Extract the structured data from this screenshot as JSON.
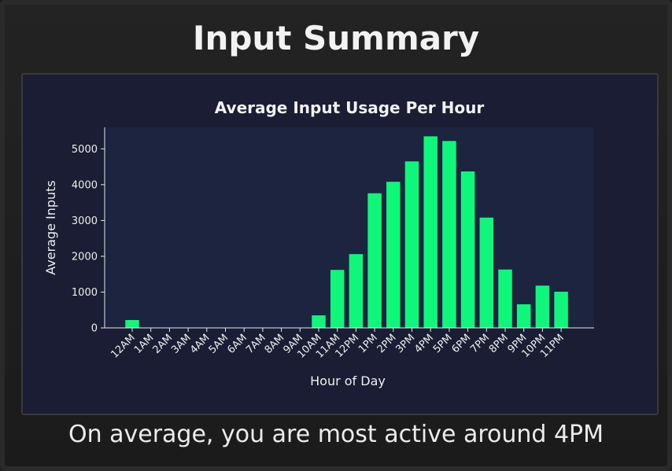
{
  "header": {
    "title": "Input Summary"
  },
  "summary": {
    "text": "On average, you are most active around 4PM"
  },
  "colors": {
    "bar": "#0ff77a",
    "plot_bg": "#1c2440",
    "frame_bg": "#1a1d33",
    "text": "#f0f0f0"
  },
  "chart_data": {
    "type": "bar",
    "title": "Average Input Usage Per Hour",
    "xlabel": "Hour of Day",
    "ylabel": "Average Inputs",
    "categories": [
      "12AM",
      "1AM",
      "2AM",
      "3AM",
      "4AM",
      "5AM",
      "6AM",
      "7AM",
      "8AM",
      "9AM",
      "10AM",
      "11AM",
      "12PM",
      "1PM",
      "2PM",
      "3PM",
      "4PM",
      "5PM",
      "6PM",
      "7PM",
      "8PM",
      "9PM",
      "10PM",
      "11PM"
    ],
    "values": [
      220,
      0,
      0,
      0,
      0,
      0,
      0,
      0,
      0,
      0,
      350,
      1620,
      2060,
      3760,
      4080,
      4650,
      5350,
      5220,
      4370,
      3080,
      1630,
      660,
      1180,
      1010
    ],
    "ylim": [
      0,
      5600
    ],
    "yticks": [
      0,
      1000,
      2000,
      3000,
      4000,
      5000
    ],
    "grid": false,
    "legend": "none"
  }
}
